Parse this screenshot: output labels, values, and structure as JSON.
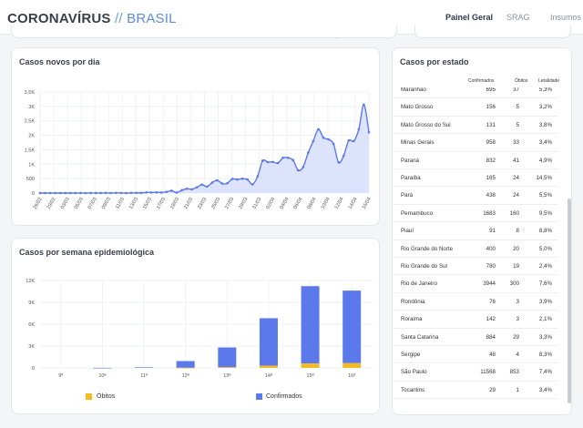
{
  "header": {
    "logo_part1": "CORONAVÍRUS",
    "logo_sep": "//",
    "logo_part2": "BRASIL",
    "nav": [
      {
        "label": "Painel Geral",
        "active": true
      },
      {
        "label": "SRAG",
        "active": false
      },
      {
        "label": "Insumos",
        "active": false
      }
    ],
    "partial_text": "..."
  },
  "colors": {
    "accent": "#2c8ee0",
    "series_blue": "#5b79ea",
    "area_fill": "#dde3fb",
    "deaths_yellow": "#f5b921"
  },
  "chart_data": [
    {
      "type": "area",
      "title": "Casos novos por dia",
      "y_ticks": [
        "0",
        "500",
        "1K",
        "1,5K",
        "2K",
        "2,5K",
        "3K",
        "3,5K"
      ],
      "ylim": [
        0,
        3500
      ],
      "x_tick_labels": [
        "26/02",
        "29/02",
        "03/03",
        "05/03",
        "07/03",
        "09/03",
        "11/03",
        "13/03",
        "15/03",
        "17/03",
        "19/03",
        "21/03",
        "23/03",
        "25/03",
        "27/03",
        "29/03",
        "31/03",
        "02/04",
        "04/04",
        "06/04",
        "08/04",
        "10/04",
        "12/04",
        "14/04",
        "16/04"
      ],
      "series": [
        {
          "name": "Casos novos",
          "values": [
            1,
            0,
            0,
            0,
            0,
            0,
            0,
            0,
            1,
            0,
            2,
            1,
            2,
            5,
            0,
            7,
            3,
            0,
            6,
            5,
            5,
            23,
            18,
            25,
            20,
            41,
            80,
            17,
            95,
            150,
            130,
            200,
            290,
            225,
            360,
            440,
            330,
            340,
            490,
            470,
            500,
            470,
            300,
            580,
            1120,
            1070,
            1080,
            1040,
            1220,
            1220,
            1140,
            790,
            900,
            1400,
            1800,
            2210,
            1920,
            1860,
            1700,
            1060,
            1290,
            1820,
            1800,
            2210,
            3060,
            2105
          ]
        }
      ]
    },
    {
      "type": "bar",
      "stacked": true,
      "title": "Casos por semana epidemiológica",
      "categories": [
        "9ª",
        "10ª",
        "11ª",
        "12ª",
        "13ª",
        "14ª",
        "15ª",
        "16ª"
      ],
      "y_ticks": [
        "0",
        "3K",
        "6K",
        "9K",
        "12K"
      ],
      "ylim": [
        0,
        12000
      ],
      "series": [
        {
          "name": "Óbitos",
          "values": [
            0,
            0,
            0,
            20,
            90,
            300,
            600,
            650
          ]
        },
        {
          "name": "Confirmados",
          "values": [
            0,
            10,
            80,
            920,
            2720,
            6520,
            10620,
            9960
          ]
        }
      ],
      "legend": [
        "Óbitos",
        "Confirmados"
      ]
    }
  ],
  "states_table": {
    "title": "Casos por estado",
    "columns": [
      "Confirmados",
      "Óbitos",
      "Letalidade"
    ],
    "rows": [
      {
        "state": "Maranhão",
        "confirmed": "695",
        "deaths": "37",
        "lethality": "5,3%"
      },
      {
        "state": "Mato Grosso",
        "confirmed": "156",
        "deaths": "5",
        "lethality": "3,2%"
      },
      {
        "state": "Mato Grosso do Sul",
        "confirmed": "131",
        "deaths": "5",
        "lethality": "3,8%"
      },
      {
        "state": "Minas Gerais",
        "confirmed": "958",
        "deaths": "33",
        "lethality": "3,4%"
      },
      {
        "state": "Paraná",
        "confirmed": "832",
        "deaths": "41",
        "lethality": "4,9%"
      },
      {
        "state": "Paraíba",
        "confirmed": "165",
        "deaths": "24",
        "lethality": "14,5%"
      },
      {
        "state": "Pará",
        "confirmed": "438",
        "deaths": "24",
        "lethality": "5,5%"
      },
      {
        "state": "Pernambuco",
        "confirmed": "1683",
        "deaths": "160",
        "lethality": "9,5%"
      },
      {
        "state": "Piauí",
        "confirmed": "91",
        "deaths": "8",
        "lethality": "8,8%"
      },
      {
        "state": "Rio Grande do Norte",
        "confirmed": "400",
        "deaths": "20",
        "lethality": "5,0%"
      },
      {
        "state": "Rio Grande do Sul",
        "confirmed": "780",
        "deaths": "19",
        "lethality": "2,4%"
      },
      {
        "state": "Rio de Janeiro",
        "confirmed": "3944",
        "deaths": "300",
        "lethality": "7,6%"
      },
      {
        "state": "Rondônia",
        "confirmed": "76",
        "deaths": "3",
        "lethality": "3,9%"
      },
      {
        "state": "Roraima",
        "confirmed": "142",
        "deaths": "3",
        "lethality": "2,1%"
      },
      {
        "state": "Santa Catarina",
        "confirmed": "884",
        "deaths": "29",
        "lethality": "3,3%"
      },
      {
        "state": "Sergipe",
        "confirmed": "48",
        "deaths": "4",
        "lethality": "8,3%"
      },
      {
        "state": "São Paulo",
        "confirmed": "11568",
        "deaths": "853",
        "lethality": "7,4%"
      },
      {
        "state": "Tocantins",
        "confirmed": "29",
        "deaths": "1",
        "lethality": "3,4%"
      }
    ]
  }
}
